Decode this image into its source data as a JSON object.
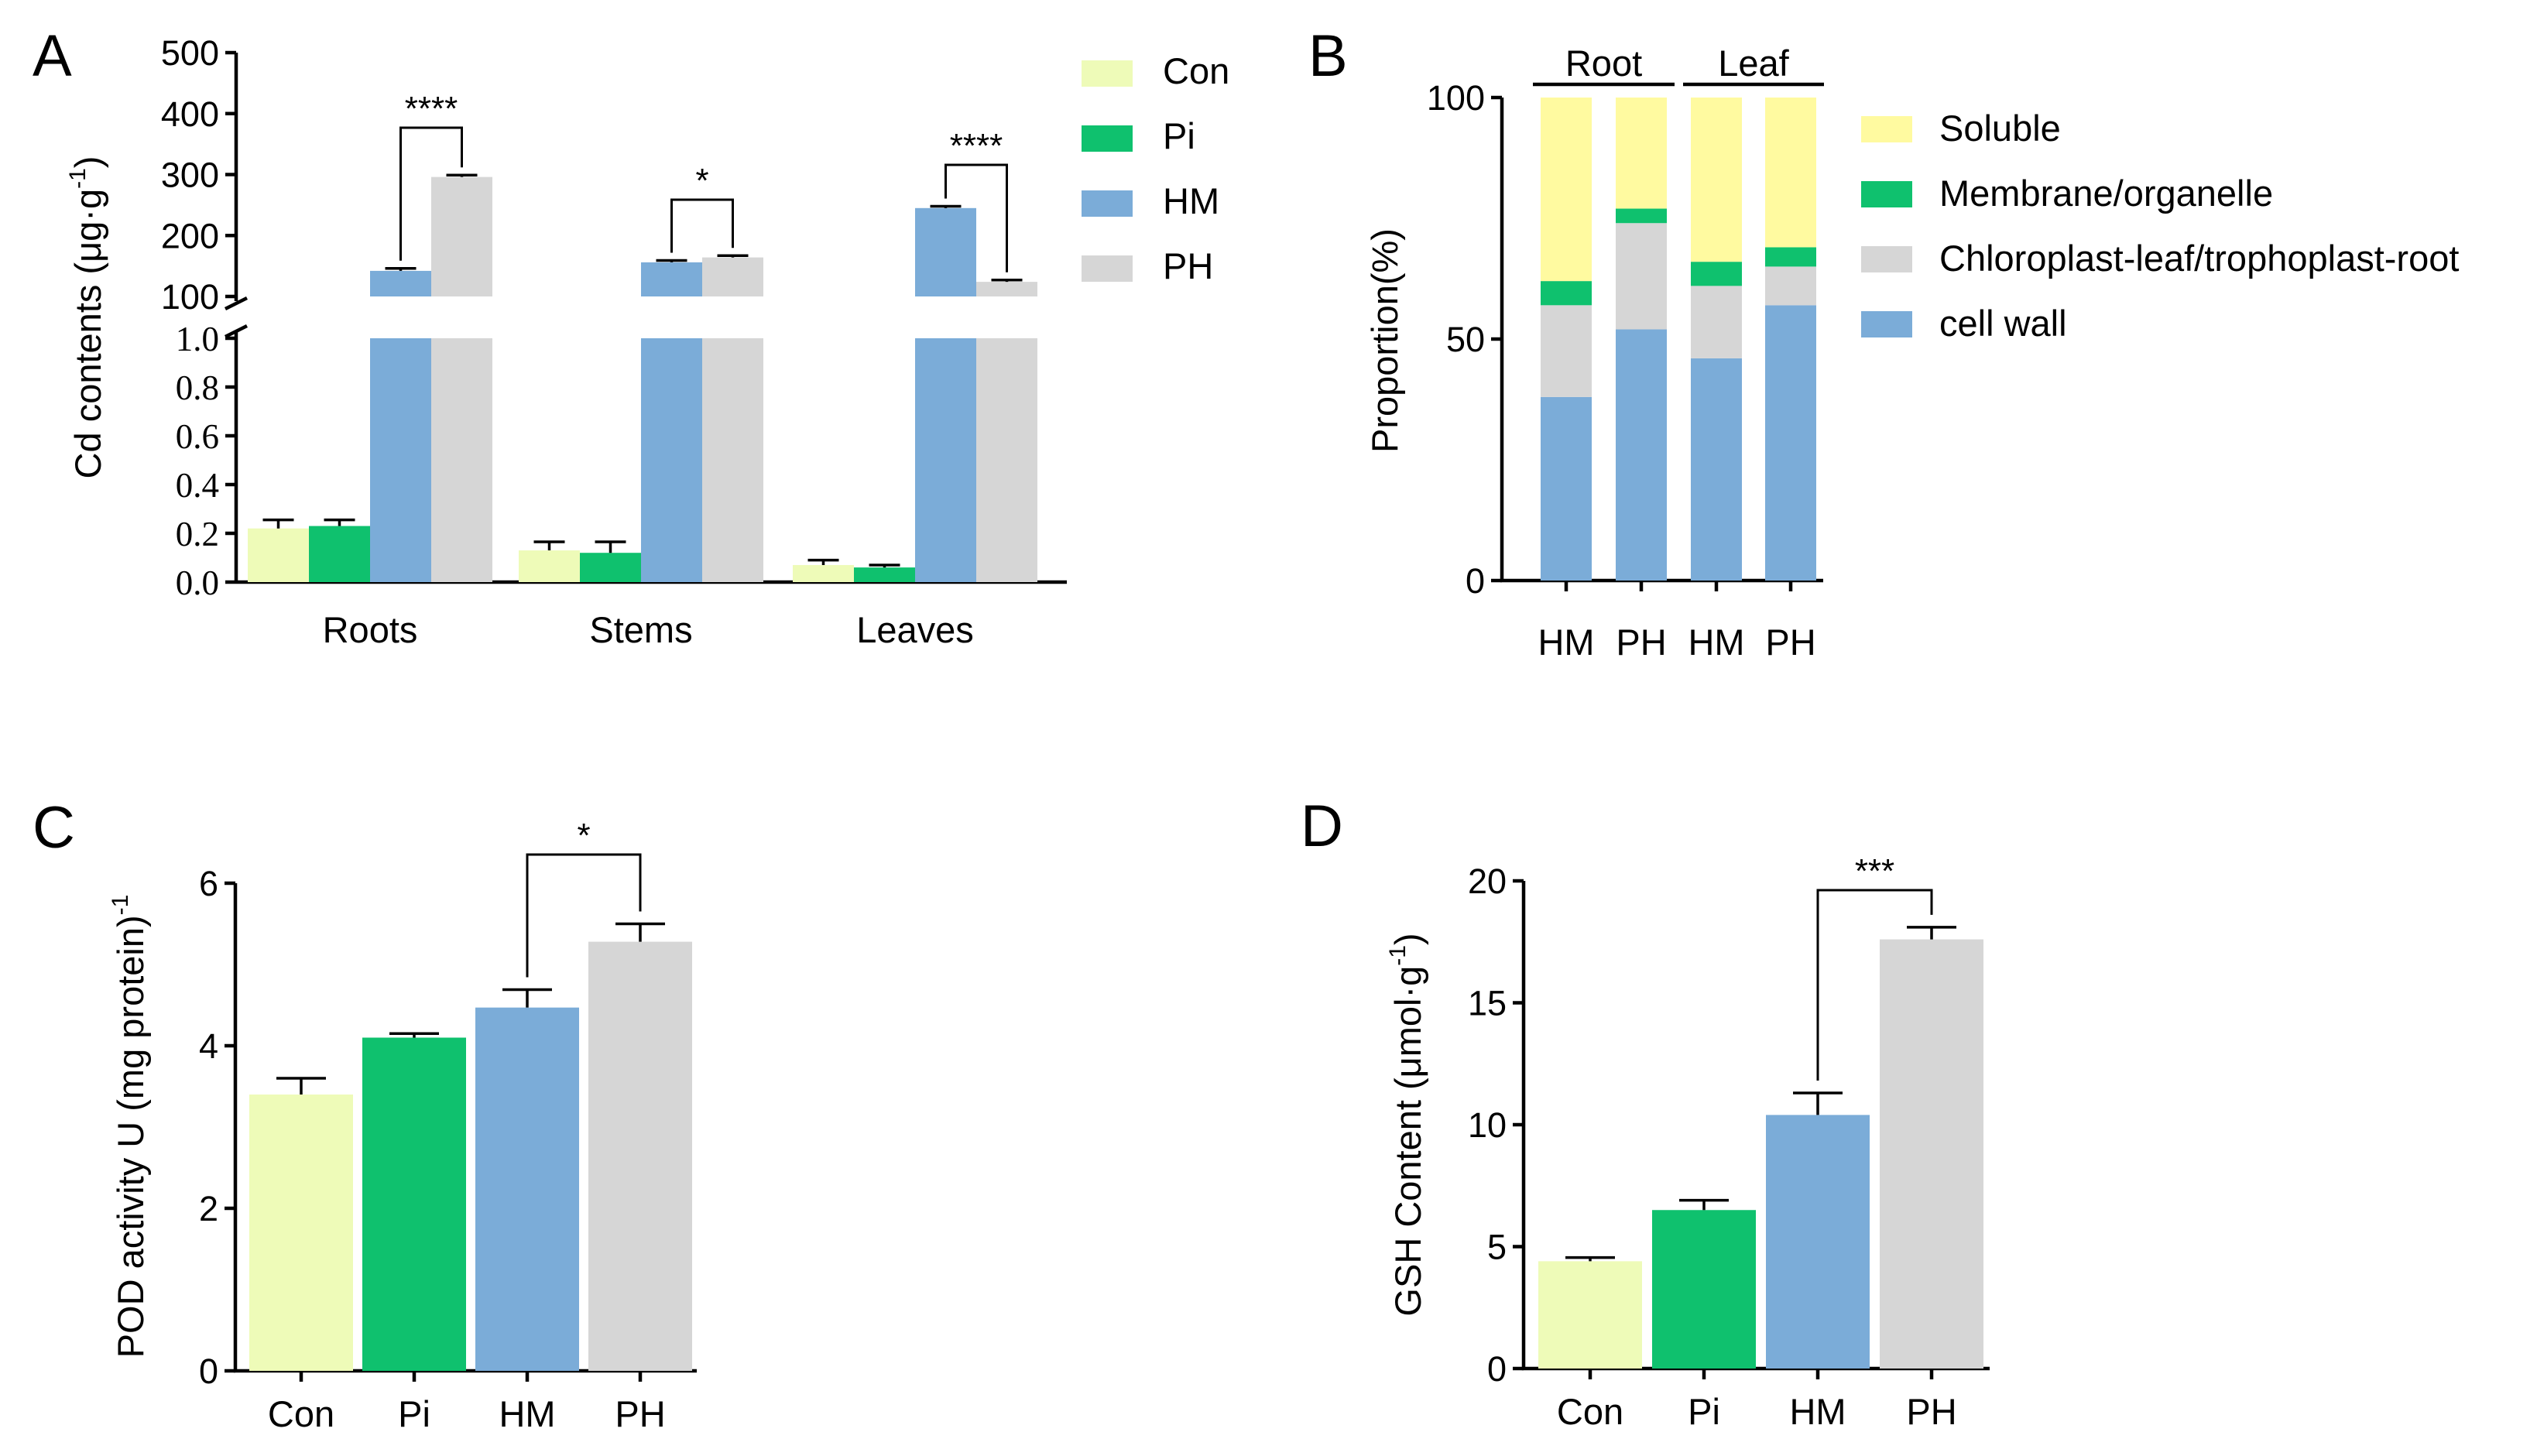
{
  "colors": {
    "Con": "#eefbb8",
    "Pi": "#0fc16e",
    "HM": "#7bacd8",
    "PH": "#d6d6d6",
    "Soluble": "#fffaa0",
    "Membrane/organelle": "#0fc16e",
    "Chloroplast-leaf/trophoplast-root": "#d6d6d6",
    "cell wall": "#7bacd8"
  },
  "panel_labels": {
    "A": "A",
    "B": "B",
    "C": "C",
    "D": "D"
  },
  "chart_data": [
    {
      "id": "A",
      "type": "bar",
      "ylabel_main": "Cd contents (μg·g",
      "ylabel_sup": "-1",
      "ylabel_close": ")",
      "categories": [
        "Roots",
        "Stems",
        "Leaves"
      ],
      "legend": [
        "Con",
        "Pi",
        "HM",
        "PH"
      ],
      "series": [
        {
          "name": "Con",
          "values": [
            0.22,
            0.13,
            0.07
          ],
          "errors": [
            0.035,
            0.035,
            0.02
          ]
        },
        {
          "name": "Pi",
          "values": [
            0.23,
            0.12,
            0.06
          ],
          "errors": [
            0.025,
            0.045,
            0.01
          ]
        },
        {
          "name": "HM",
          "values": [
            142,
            156,
            245
          ],
          "errors": [
            4,
            3,
            3
          ]
        },
        {
          "name": "PH",
          "values": [
            296,
            164,
            124
          ],
          "errors": [
            3,
            3,
            3
          ]
        }
      ],
      "y_lower": {
        "range": [
          0,
          1.0
        ],
        "ticks": [
          "0.0",
          "0.2",
          "0.4",
          "0.6",
          "0.8",
          "1.0"
        ]
      },
      "y_upper": {
        "range": [
          100,
          500
        ],
        "ticks": [
          "100",
          "200",
          "300",
          "400",
          "500"
        ]
      },
      "significance": [
        {
          "category": "Roots",
          "between": [
            "HM",
            "PH"
          ],
          "label": "****"
        },
        {
          "category": "Stems",
          "between": [
            "HM",
            "PH"
          ],
          "label": "*"
        },
        {
          "category": "Leaves",
          "between": [
            "HM",
            "PH"
          ],
          "label": "****"
        }
      ]
    },
    {
      "id": "B",
      "type": "stacked-bar",
      "ylabel": "Proportion(%)",
      "ylim": [
        0,
        100
      ],
      "yticks": [
        "0",
        "50",
        "100"
      ],
      "groups": [
        {
          "label": "Root",
          "bars": [
            0,
            1
          ]
        },
        {
          "label": "Leaf",
          "bars": [
            2,
            3
          ]
        }
      ],
      "bars": [
        "HM",
        "PH",
        "HM",
        "PH"
      ],
      "legend": [
        "Soluble",
        "Membrane/organelle",
        "Chloroplast-leaf/trophoplast-root",
        "cell wall"
      ],
      "stack_order": [
        "cell wall",
        "Chloroplast-leaf/trophoplast-root",
        "Membrane/organelle",
        "Soluble"
      ],
      "series": [
        {
          "name": "cell wall",
          "values": [
            38,
            52,
            46,
            57
          ]
        },
        {
          "name": "Chloroplast-leaf/trophoplast-root",
          "values": [
            19,
            22,
            15,
            8
          ]
        },
        {
          "name": "Membrane/organelle",
          "values": [
            5,
            3,
            5,
            4
          ]
        },
        {
          "name": "Soluble",
          "values": [
            38,
            23,
            34,
            31
          ]
        }
      ]
    },
    {
      "id": "C",
      "type": "bar",
      "ylabel_main": "POD activity U (mg protein)",
      "ylabel_sup": "-1",
      "categories": [
        "Con",
        "Pi",
        "HM",
        "PH"
      ],
      "values": [
        3.4,
        4.1,
        4.47,
        5.28
      ],
      "errors": [
        0.2,
        0.05,
        0.22,
        0.22
      ],
      "ylim": [
        0,
        6
      ],
      "yticks": [
        "0",
        "2",
        "4",
        "6"
      ],
      "significance": [
        {
          "between": [
            "HM",
            "PH"
          ],
          "label": "*"
        }
      ]
    },
    {
      "id": "D",
      "type": "bar",
      "ylabel_main": "GSH Content (μmol·g",
      "ylabel_sup": "-1",
      "ylabel_close": ")",
      "categories": [
        "Con",
        "Pi",
        "HM",
        "PH"
      ],
      "values": [
        4.4,
        6.5,
        10.4,
        17.6
      ],
      "errors": [
        0.15,
        0.4,
        0.9,
        0.5
      ],
      "ylim": [
        0,
        20
      ],
      "yticks": [
        "0",
        "5",
        "10",
        "15",
        "20"
      ],
      "significance": [
        {
          "between": [
            "HM",
            "PH"
          ],
          "label": "***"
        }
      ]
    }
  ]
}
